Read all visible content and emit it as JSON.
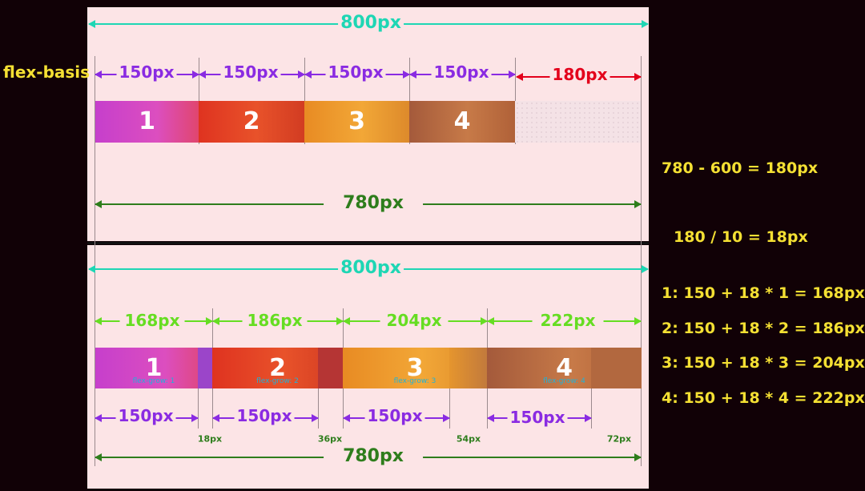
{
  "side_label": "flex-basis",
  "colors": {
    "container": "#1ed6b4",
    "basis": "#8a2be2",
    "free": "#e3001b",
    "total": "#2e7d1c",
    "grown": "#66dd22",
    "formula": "#f4e033",
    "item1": "#c63fcc",
    "item2": "#e03a22",
    "item3": "#ef9b2a",
    "item4": "#b9683e"
  },
  "top": {
    "container_label": "800px",
    "basis_labels": [
      "150px",
      "150px",
      "150px",
      "150px"
    ],
    "free_label": "180px",
    "items": [
      "1",
      "2",
      "3",
      "4"
    ],
    "total_label": "780px"
  },
  "bottom": {
    "container_label": "800px",
    "grown_labels": [
      "168px",
      "186px",
      "204px",
      "222px"
    ],
    "items": [
      "1",
      "2",
      "3",
      "4"
    ],
    "grow_notes": [
      "flex-grow: 1",
      "flex-grow: 2",
      "flex-grow: 3",
      "flex-grow: 4"
    ],
    "basis_labels": [
      "150px",
      "150px",
      "150px",
      "150px"
    ],
    "extra_labels": [
      "18px",
      "36px",
      "54px",
      "72px"
    ],
    "total_label": "780px"
  },
  "formulas": [
    "780 - 600 = 180px",
    "180 / 10 = 18px",
    "1:  150 + 18 * 1 = 168px",
    "2:  150 + 18 * 2 = 186px",
    "3:  150 + 18 * 3 = 204px",
    "4:  150 + 18 * 4 = 222px"
  ]
}
